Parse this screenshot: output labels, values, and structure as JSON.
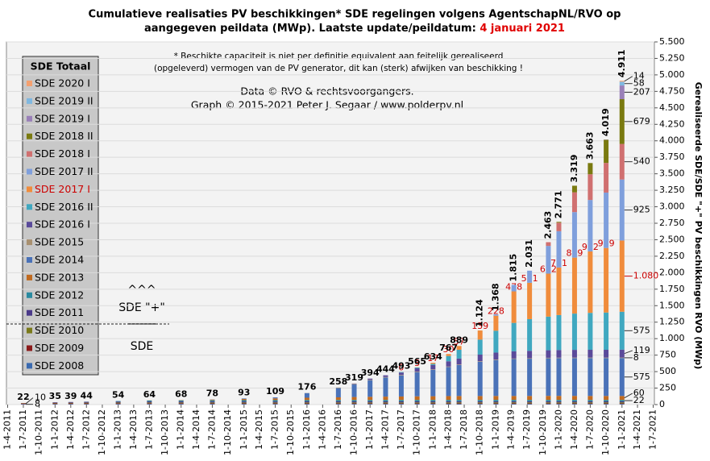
{
  "chart_data": {
    "type": "stacked_bar",
    "title": [
      "Cumulatieve realisaties PV beschikkingen*  SDE regelingen volgens AgentschapNL/RVO  op",
      "aangegeven peildata (MWp). Laatste update/peildatum:"
    ],
    "title_date": "4 januari 2021",
    "notes": [
      "* Beschikte capaciteit is niet per definitie equivalent aan feitelijk gerealiseerd",
      "(opgeleverd) vermogen van de PV generator, dit kan (sterk) afwijken van beschikking !"
    ],
    "credits": [
      "Data © RVO & rechtsvoorgangers.",
      "Graph  © 2015-2021  Peter J. Segaar / www.polderpv.nl"
    ],
    "legend_title": "SDE Totaal",
    "annotations": [
      "^^^",
      "SDE \"+\"",
      "-------",
      "SDE"
    ],
    "y_label": "Gerealiseerde SDE/SDE \"+\" PV beschikkingen RVO (MWp)",
    "x": [
      "1-7-2011",
      "1-1-2012",
      "1-4-2012",
      "1-7-2012",
      "1-1-2013",
      "1-7-2013",
      "1-1-2014",
      "1-7-2014",
      "1-1-2015",
      "1-7-2015",
      "1-1-2016",
      "1-7-2016",
      "1-10-2016",
      "1-1-2017",
      "1-4-2017",
      "1-7-2017",
      "1-10-2017",
      "1-1-2018",
      "1-4-2018",
      "1-6-2018",
      "1-10-2018",
      "1-1-2019",
      "15-4-2019",
      "15-7-2019",
      "1-11-2019",
      "1-1-2020",
      "1-4-2020",
      "1-7-2020",
      "1-10-2020",
      "1-1-2021"
    ],
    "totals": {
      "values": [
        22,
        35,
        39,
        44,
        54,
        64,
        68,
        78,
        93,
        109,
        176,
        258,
        319,
        394,
        444,
        493,
        565,
        634,
        767,
        889,
        1124,
        1368,
        1815,
        2031,
        2463,
        2771,
        3319,
        3663,
        4019,
        4911
      ],
      "value_labels": [
        "22",
        "35",
        "39",
        "44",
        "54",
        "64",
        "68",
        "78",
        "93",
        "109",
        "176",
        "258",
        "319",
        "394",
        "444",
        "493",
        "565",
        "634",
        "767",
        "889",
        "1.124",
        "1.368",
        "1.815",
        "2.031",
        "2.463",
        "2.771",
        "3.319",
        "3.663",
        "4.019",
        "4.911"
      ]
    },
    "series": [
      {
        "name": "SDE 2008",
        "color": "#3a6ab0",
        "annotate_first": true,
        "values": [
          8,
          9,
          9,
          9,
          10,
          10,
          10,
          10,
          10,
          10,
          10,
          10,
          10,
          10,
          10,
          10,
          10,
          10,
          10,
          10,
          10,
          10,
          10,
          10,
          10,
          10,
          10,
          10,
          10,
          10
        ]
      },
      {
        "name": "SDE 2009",
        "color": "#8b1a1a",
        "annotate_first": true,
        "values": [
          10,
          10,
          10,
          10,
          10,
          10,
          10,
          9,
          9,
          9,
          9,
          9,
          9,
          9,
          9,
          9,
          9,
          9,
          9,
          9,
          9,
          9,
          9,
          9,
          9,
          9,
          9,
          9,
          9,
          9
        ]
      },
      {
        "name": "SDE 2010",
        "color": "#7a7a1a",
        "values": [
          4,
          8,
          9,
          10,
          11,
          12,
          12,
          13,
          13,
          13,
          14,
          14,
          14,
          14,
          14,
          14,
          14,
          14,
          15,
          15,
          15,
          15,
          15,
          15,
          15,
          15,
          15,
          15,
          15,
          15
        ]
      },
      {
        "name": "SDE 2011",
        "color": "#4b3a8a",
        "values": [
          null,
          8,
          11,
          13,
          15,
          16,
          16,
          16,
          16,
          16,
          16,
          16,
          16,
          16,
          16,
          16,
          16,
          16,
          16,
          16,
          16,
          16,
          16,
          16,
          16,
          16,
          16,
          15,
          15,
          15
        ]
      },
      {
        "name": "SDE 2012",
        "color": "#2a8aa0",
        "annotate_last": true,
        "values": [
          null,
          null,
          null,
          2,
          8,
          14,
          16,
          18,
          19,
          20,
          20,
          21,
          21,
          21,
          22,
          22,
          22,
          22,
          22,
          22,
          22,
          22,
          22,
          22,
          22,
          22,
          22,
          22,
          22,
          22
        ]
      },
      {
        "name": "SDE 2013",
        "color": "#c06a20",
        "annotate_last": true,
        "values": [
          null,
          null,
          null,
          null,
          null,
          2,
          4,
          10,
          18,
          26,
          35,
          40,
          45,
          48,
          50,
          52,
          54,
          56,
          57,
          58,
          58,
          59,
          59,
          59,
          60,
          60,
          60,
          60,
          60,
          60
        ]
      },
      {
        "name": "SDE 2014",
        "color": "#4a72b8",
        "annotate_last": true,
        "values": [
          null,
          null,
          null,
          null,
          null,
          null,
          null,
          2,
          8,
          15,
          70,
          140,
          190,
          250,
          290,
          320,
          367,
          400,
          440,
          470,
          520,
          545,
          560,
          565,
          570,
          572,
          573,
          574,
          574,
          575
        ]
      },
      {
        "name": "SDE 2015",
        "color": "#a89070",
        "annotate_last": true,
        "values": [
          null,
          null,
          null,
          null,
          null,
          null,
          null,
          null,
          null,
          null,
          2,
          8,
          8,
          8,
          8,
          8,
          8,
          8,
          8,
          8,
          8,
          8,
          8,
          8,
          8,
          8,
          8,
          8,
          8,
          8
        ]
      },
      {
        "name": "SDE 2016 I",
        "color": "#5a4a9a",
        "annotate_last": true,
        "values": [
          null,
          null,
          null,
          null,
          null,
          null,
          null,
          null,
          null,
          null,
          null,
          null,
          6,
          18,
          25,
          35,
          50,
          65,
          80,
          90,
          100,
          105,
          110,
          112,
          114,
          116,
          117,
          118,
          118,
          119
        ]
      },
      {
        "name": "SDE 2016 II",
        "color": "#40a8c0",
        "annotate_last": true,
        "values": [
          null,
          null,
          null,
          null,
          null,
          null,
          null,
          null,
          null,
          null,
          null,
          null,
          null,
          null,
          null,
          7,
          12,
          17,
          80,
          134,
          227,
          331,
          430,
          480,
          510,
          530,
          550,
          560,
          565,
          575
        ]
      },
      {
        "name": "SDE 2017 I",
        "color": "#f08c3c",
        "annotate_last": true,
        "label_inside": true,
        "label_color": "#cc0000",
        "values": [
          null,
          null,
          null,
          null,
          null,
          null,
          null,
          null,
          null,
          null,
          null,
          null,
          null,
          null,
          null,
          0,
          3,
          17,
          30,
          57,
          139,
          228,
          478,
          551,
          652,
          721,
          849,
          932,
          979,
          1080
        ],
        "value_labels": [
          null,
          null,
          null,
          null,
          null,
          null,
          null,
          null,
          null,
          null,
          null,
          null,
          null,
          null,
          null,
          null,
          null,
          null,
          null,
          null,
          null,
          null,
          null,
          null,
          null,
          null,
          null,
          null,
          null,
          "1.080"
        ]
      },
      {
        "name": "SDE 2017 II",
        "color": "#7f9fdc",
        "annotate_last": true,
        "values": [
          null,
          null,
          null,
          null,
          null,
          null,
          null,
          null,
          null,
          null,
          null,
          null,
          null,
          null,
          null,
          null,
          null,
          null,
          null,
          null,
          null,
          20,
          98,
          184,
          420,
          550,
          690,
          780,
          840,
          925
        ]
      },
      {
        "name": "SDE 2018 I",
        "color": "#d07070",
        "annotate_last": true,
        "values": [
          null,
          null,
          null,
          null,
          null,
          null,
          null,
          null,
          null,
          null,
          null,
          null,
          null,
          null,
          null,
          null,
          null,
          null,
          null,
          null,
          null,
          null,
          null,
          null,
          57,
          130,
          300,
          390,
          450,
          540
        ]
      },
      {
        "name": "SDE 2018 II",
        "color": "#7a7a10",
        "annotate_last": true,
        "values": [
          null,
          null,
          null,
          null,
          null,
          null,
          null,
          null,
          null,
          null,
          null,
          null,
          null,
          null,
          null,
          null,
          null,
          null,
          null,
          null,
          null,
          null,
          null,
          null,
          null,
          12,
          100,
          170,
          350,
          679
        ]
      },
      {
        "name": "SDE 2019 I",
        "color": "#9a80b8",
        "annotate_last": true,
        "values": [
          null,
          null,
          null,
          null,
          null,
          null,
          null,
          null,
          null,
          null,
          null,
          null,
          null,
          null,
          null,
          null,
          null,
          null,
          null,
          null,
          null,
          null,
          null,
          null,
          null,
          null,
          null,
          null,
          4,
          207
        ]
      },
      {
        "name": "SDE 2019 II",
        "color": "#80b8e0",
        "annotate_last": true,
        "values": [
          null,
          null,
          null,
          null,
          null,
          null,
          null,
          null,
          null,
          null,
          null,
          null,
          null,
          null,
          null,
          null,
          null,
          null,
          null,
          null,
          null,
          null,
          null,
          null,
          null,
          null,
          null,
          null,
          null,
          58
        ]
      },
      {
        "name": "SDE 2020 I",
        "color": "#f4a070",
        "annotate_last": true,
        "values": [
          null,
          null,
          null,
          null,
          null,
          null,
          null,
          null,
          null,
          null,
          null,
          null,
          null,
          null,
          null,
          null,
          null,
          null,
          null,
          null,
          null,
          null,
          null,
          null,
          null,
          null,
          null,
          null,
          null,
          14
        ]
      }
    ],
    "xlim": [
      "25-3-2011",
      "8-7-2021"
    ],
    "xticks": [
      "1-4-2011",
      "1-7-2011",
      "1-10-2011",
      "1-1-2012",
      "1-4-2012",
      "1-7-2012",
      "1-10-2012",
      "1-1-2013",
      "1-4-2013",
      "1-7-2013",
      "1-10-2013",
      "1-1-2014",
      "1-4-2014",
      "1-7-2014",
      "1-10-2014",
      "1-1-2015",
      "1-4-2015",
      "1-7-2015",
      "1-10-2015",
      "1-1-2016",
      "1-4-2016",
      "1-7-2016",
      "1-10-2016",
      "1-1-2017",
      "1-4-2017",
      "1-7-2017",
      "1-10-2017",
      "1-1-2018",
      "1-4-2018",
      "1-7-2018",
      "1-10-2018",
      "1-1-2019",
      "1-4-2019",
      "1-7-2019",
      "1-10-2019",
      "1-1-2020",
      "1-4-2020",
      "1-7-2020",
      "1-10-2020",
      "1-1-2021",
      "1-4-2021",
      "1-7-2021"
    ],
    "ylim": [
      0,
      5500
    ],
    "yticks": [
      0,
      250,
      500,
      750,
      {
        "value": 1000,
        "label": "1.000"
      },
      {
        "value": 1250,
        "label": "1.250"
      },
      {
        "value": 1500,
        "label": "1.500"
      },
      {
        "value": 1750,
        "label": "1.750"
      },
      {
        "value": 2000,
        "label": "2.000"
      },
      {
        "value": 2250,
        "label": "2.250"
      },
      {
        "value": 2500,
        "label": "2.500"
      },
      {
        "value": 2750,
        "label": "2.750"
      },
      {
        "value": 3000,
        "label": "3.000"
      },
      {
        "value": 3250,
        "label": "3.250"
      },
      {
        "value": 3500,
        "label": "3.500"
      },
      {
        "value": 3750,
        "label": "3.750"
      },
      {
        "value": 4000,
        "label": "4.000"
      },
      {
        "value": 4250,
        "label": "4.250"
      },
      {
        "value": 4500,
        "label": "4.500"
      },
      {
        "value": 4750,
        "label": "4.750"
      },
      {
        "value": 5000,
        "label": "5.000"
      },
      {
        "value": 5250,
        "label": "5.250"
      },
      {
        "value": 5500,
        "label": "5.500"
      }
    ],
    "grid": true
  }
}
